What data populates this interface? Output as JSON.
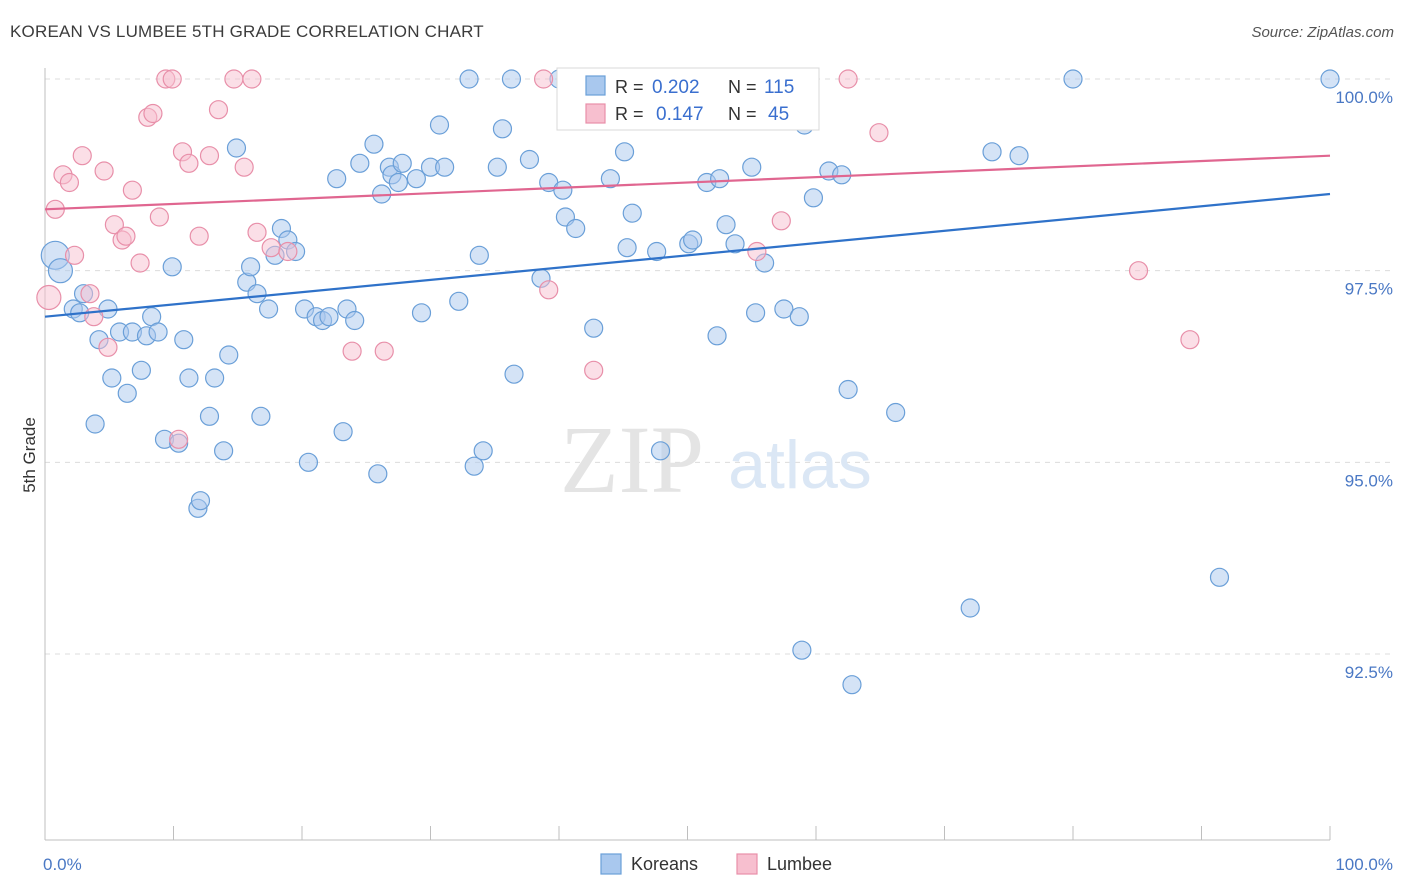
{
  "title": "KOREAN VS LUMBEE 5TH GRADE CORRELATION CHART",
  "source": "Source: ZipAtlas.com",
  "watermark": {
    "zip": "ZIP",
    "atlas": "atlas"
  },
  "chart_data": {
    "type": "scatter",
    "xlabel": "",
    "ylabel": "5th Grade",
    "xlim": [
      0,
      100
    ],
    "ylim": [
      89.7,
      100.9
    ],
    "x_ticks": [
      "0.0%",
      "100.0%"
    ],
    "y_ticks": [
      {
        "value": 100.0,
        "label": "100.0%"
      },
      {
        "value": 97.5,
        "label": "97.5%"
      },
      {
        "value": 95.0,
        "label": "95.0%"
      },
      {
        "value": 92.5,
        "label": "92.5%"
      }
    ],
    "grid": true,
    "legend_placement": "top-center",
    "stats": [
      {
        "r_label": "R = ",
        "r": "0.202",
        "n_label": "N = ",
        "n": "115"
      },
      {
        "r_label": "R = ",
        "r": "0.147",
        "n_label": "N = ",
        "n": "45"
      }
    ],
    "series": [
      {
        "name": "Koreans",
        "color": "#a9c8ee",
        "stroke": "#6a9fd8",
        "line_color": "#2f72c9",
        "trend": [
          [
            0,
            96.9
          ],
          [
            100,
            98.5
          ]
        ],
        "points": [
          [
            0.8,
            97.7
          ],
          [
            1.2,
            97.5
          ],
          [
            2.2,
            97.0
          ],
          [
            2.7,
            96.95
          ],
          [
            3.0,
            97.2
          ],
          [
            3.9,
            95.5
          ],
          [
            4.2,
            96.6
          ],
          [
            4.9,
            97.0
          ],
          [
            5.2,
            96.1
          ],
          [
            5.8,
            96.7
          ],
          [
            6.4,
            95.9
          ],
          [
            6.8,
            96.7
          ],
          [
            7.5,
            96.2
          ],
          [
            7.9,
            96.65
          ],
          [
            8.3,
            96.9
          ],
          [
            8.8,
            96.7
          ],
          [
            9.3,
            95.3
          ],
          [
            9.9,
            97.55
          ],
          [
            10.4,
            95.25
          ],
          [
            10.8,
            96.6
          ],
          [
            11.2,
            96.1
          ],
          [
            11.9,
            94.4
          ],
          [
            12.1,
            94.5
          ],
          [
            12.8,
            95.6
          ],
          [
            13.2,
            96.1
          ],
          [
            13.9,
            95.15
          ],
          [
            14.3,
            96.4
          ],
          [
            14.9,
            99.1
          ],
          [
            15.7,
            97.35
          ],
          [
            16.0,
            97.55
          ],
          [
            16.5,
            97.2
          ],
          [
            16.8,
            95.6
          ],
          [
            17.4,
            97.0
          ],
          [
            17.9,
            97.7
          ],
          [
            18.4,
            98.05
          ],
          [
            18.9,
            97.9
          ],
          [
            19.5,
            97.75
          ],
          [
            20.2,
            97.0
          ],
          [
            20.5,
            95.0
          ],
          [
            21.1,
            96.9
          ],
          [
            21.6,
            96.85
          ],
          [
            22.1,
            96.9
          ],
          [
            22.7,
            98.7
          ],
          [
            23.2,
            95.4
          ],
          [
            23.5,
            97.0
          ],
          [
            24.1,
            96.85
          ],
          [
            24.5,
            98.9
          ],
          [
            25.6,
            99.15
          ],
          [
            25.9,
            94.85
          ],
          [
            26.2,
            98.5
          ],
          [
            26.8,
            98.85
          ],
          [
            27.0,
            98.75
          ],
          [
            27.5,
            98.65
          ],
          [
            27.8,
            98.9
          ],
          [
            28.9,
            98.7
          ],
          [
            29.3,
            96.95
          ],
          [
            30.0,
            98.85
          ],
          [
            30.7,
            99.4
          ],
          [
            31.1,
            98.85
          ],
          [
            32.2,
            97.1
          ],
          [
            33.0,
            100.0
          ],
          [
            33.4,
            94.95
          ],
          [
            33.8,
            97.7
          ],
          [
            34.1,
            95.15
          ],
          [
            35.2,
            98.85
          ],
          [
            35.6,
            99.35
          ],
          [
            36.3,
            100.0
          ],
          [
            36.5,
            96.15
          ],
          [
            37.7,
            98.95
          ],
          [
            38.6,
            97.4
          ],
          [
            39.2,
            98.65
          ],
          [
            40.0,
            100.0
          ],
          [
            40.3,
            98.55
          ],
          [
            40.5,
            98.2
          ],
          [
            41.3,
            98.05
          ],
          [
            42.3,
            100.0
          ],
          [
            42.7,
            96.75
          ],
          [
            43.2,
            100.0
          ],
          [
            44.0,
            98.7
          ],
          [
            45.1,
            99.05
          ],
          [
            45.3,
            97.8
          ],
          [
            45.7,
            98.25
          ],
          [
            46.4,
            100.0
          ],
          [
            47.6,
            97.75
          ],
          [
            47.9,
            95.15
          ],
          [
            48.8,
            99.8
          ],
          [
            50.1,
            97.85
          ],
          [
            50.4,
            97.9
          ],
          [
            51.0,
            100.0
          ],
          [
            51.5,
            98.65
          ],
          [
            52.3,
            96.65
          ],
          [
            52.5,
            98.7
          ],
          [
            53.0,
            98.1
          ],
          [
            53.7,
            97.85
          ],
          [
            54.0,
            100.0
          ],
          [
            55.0,
            98.85
          ],
          [
            55.3,
            96.95
          ],
          [
            56.0,
            97.6
          ],
          [
            56.8,
            100.0
          ],
          [
            57.5,
            97.0
          ],
          [
            58.7,
            96.9
          ],
          [
            58.9,
            92.55
          ],
          [
            59.1,
            99.4
          ],
          [
            59.8,
            98.45
          ],
          [
            61.0,
            98.8
          ],
          [
            62.0,
            98.75
          ],
          [
            62.5,
            95.95
          ],
          [
            62.8,
            92.1
          ],
          [
            66.2,
            95.65
          ],
          [
            72.0,
            93.1
          ],
          [
            73.7,
            99.05
          ],
          [
            75.8,
            99.0
          ],
          [
            80.0,
            100.0
          ],
          [
            91.4,
            93.5
          ],
          [
            100.0,
            100.0
          ]
        ]
      },
      {
        "name": "Lumbee",
        "color": "#f7bfcf",
        "stroke": "#e88fa9",
        "line_color": "#e06690",
        "trend": [
          [
            0,
            98.3
          ],
          [
            100,
            99.0
          ]
        ],
        "points": [
          [
            0.3,
            97.15
          ],
          [
            0.8,
            98.3
          ],
          [
            1.4,
            98.75
          ],
          [
            1.9,
            98.65
          ],
          [
            2.3,
            97.7
          ],
          [
            2.9,
            99.0
          ],
          [
            3.5,
            97.2
          ],
          [
            3.8,
            96.9
          ],
          [
            4.6,
            98.8
          ],
          [
            4.9,
            96.5
          ],
          [
            5.4,
            98.1
          ],
          [
            6.0,
            97.9
          ],
          [
            6.3,
            97.95
          ],
          [
            6.8,
            98.55
          ],
          [
            7.4,
            97.6
          ],
          [
            8.0,
            99.5
          ],
          [
            8.4,
            99.55
          ],
          [
            8.9,
            98.2
          ],
          [
            9.4,
            100.0
          ],
          [
            9.9,
            100.0
          ],
          [
            10.4,
            95.3
          ],
          [
            10.7,
            99.05
          ],
          [
            11.2,
            98.9
          ],
          [
            12.0,
            97.95
          ],
          [
            12.8,
            99.0
          ],
          [
            13.5,
            99.6
          ],
          [
            14.7,
            100.0
          ],
          [
            15.5,
            98.85
          ],
          [
            16.1,
            100.0
          ],
          [
            16.5,
            98.0
          ],
          [
            17.6,
            97.8
          ],
          [
            18.9,
            97.75
          ],
          [
            23.9,
            96.45
          ],
          [
            26.4,
            96.45
          ],
          [
            38.8,
            100.0
          ],
          [
            39.2,
            97.25
          ],
          [
            42.7,
            96.2
          ],
          [
            45.0,
            100.0
          ],
          [
            54.3,
            100.0
          ],
          [
            55.4,
            97.75
          ],
          [
            57.3,
            98.15
          ],
          [
            62.5,
            100.0
          ],
          [
            64.9,
            99.3
          ],
          [
            85.1,
            97.5
          ],
          [
            89.1,
            96.6
          ]
        ]
      }
    ]
  }
}
